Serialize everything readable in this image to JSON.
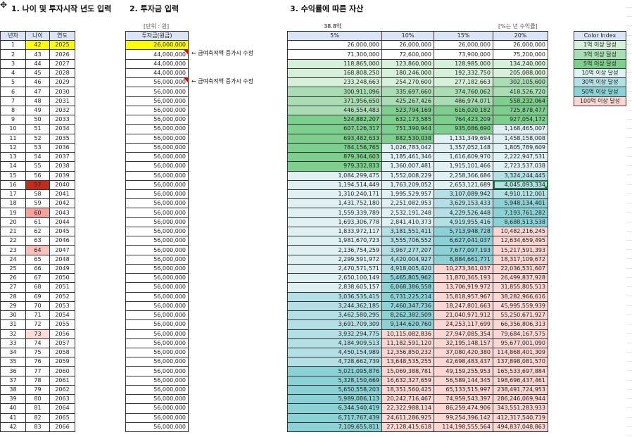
{
  "titles": {
    "section1": "1. 나이 및 투자시작 년도 입력",
    "section2": "2. 투자금 입력",
    "section3": "3. 수익률에 따른 자산"
  },
  "notes": {
    "unit": "[단위 : 원]",
    "highlight_total": "38.8억",
    "rate_note": "[%는 년 수익률]",
    "salary_note": "← 급여축적액 증가시 수정"
  },
  "left_table": {
    "headers": [
      "년차",
      "나이",
      "연도"
    ],
    "start_age": 42,
    "start_year": 2025,
    "row_count": 42,
    "age_highlights": {
      "16": "#c42b1c",
      "19": "#f4a29b",
      "23": "#f8c0ba",
      "32": "#fbdcd8"
    },
    "input_color": "#ffff00"
  },
  "invest_table": {
    "header": "투자금(원금)",
    "values": [
      "26,000,000",
      "44,000,000",
      "44,000,000",
      "44,000,000",
      "56,000,000",
      "56,000,000",
      "56,000,000",
      "56,000,000",
      "56,000,000",
      "56,000,000",
      "56,000,000",
      "56,000,000",
      "56,000,000",
      "56,000,000",
      "56,000,000",
      "56,000,000",
      "56,000,000",
      "56,000,000",
      "56,000,000",
      "56,000,000",
      "56,000,000",
      "56,000,000",
      "56,000,000",
      "56,000,000",
      "56,000,000",
      "56,000,000",
      "56,000,000",
      "56,000,000",
      "56,000,000",
      "56,000,000",
      "56,000,000",
      "56,000,000",
      "56,000,000",
      "56,000,000",
      "56,000,000",
      "56,000,000",
      "56,000,000",
      "56,000,000",
      "56,000,000",
      "56,000,000",
      "56,000,000",
      "56,000,000"
    ],
    "note_rows": [
      2,
      5
    ]
  },
  "returns_table": {
    "headers": [
      "5%",
      "10%",
      "15%",
      "20%"
    ],
    "columns": [
      [
        "26,000,000",
        "71,300,000",
        "118,865,000",
        "168,808,250",
        "233,248,663",
        "300,911,096",
        "371,956,650",
        "446,554,483",
        "524,882,207",
        "607,126,317",
        "693,482,633",
        "784,156,765",
        "879,364,603",
        "979,332,833",
        "1,084,299,475",
        "1,194,514,449",
        "1,310,240,171",
        "1,431,752,180",
        "1,559,339,789",
        "1,693,306,778",
        "1,833,972,117",
        "1,981,670,723",
        "2,136,754,259",
        "2,299,591,972",
        "2,470,571,571",
        "2,650,100,149",
        "2,838,605,157",
        "3,036,535,415",
        "3,244,362,185",
        "3,462,580,295",
        "3,691,709,309",
        "3,932,294,775",
        "4,184,909,513",
        "4,450,154,989",
        "4,728,662,739",
        "5,021,095,876",
        "5,328,150,669",
        "5,650,558,203",
        "5,989,086,113",
        "6,344,540,419",
        "6,717,767,439",
        "7,109,655,811"
      ],
      [
        "26,000,000",
        "72,600,000",
        "123,860,000",
        "180,246,000",
        "254,270,600",
        "335,697,660",
        "425,267,426",
        "523,794,169",
        "632,173,585",
        "751,390,944",
        "882,530,038",
        "1,026,783,042",
        "1,185,461,346",
        "1,360,007,481",
        "1,552,008,229",
        "1,763,209,052",
        "1,995,529,957",
        "2,251,082,953",
        "2,532,191,248",
        "2,841,410,373",
        "3,181,551,411",
        "3,555,706,552",
        "3,967,277,207",
        "4,420,004,927",
        "4,918,005,420",
        "5,465,805,962",
        "6,068,386,558",
        "6,731,225,214",
        "7,460,347,736",
        "8,262,382,509",
        "9,144,620,760",
        "10,115,082,836",
        "11,182,591,120",
        "12,356,850,232",
        "13,648,535,255",
        "15,069,388,781",
        "16,632,327,659",
        "18,351,560,425",
        "20,242,716,467",
        "22,322,988,114",
        "24,611,286,925",
        "27,128,415,618"
      ],
      [
        "26,000,000",
        "73,900,000",
        "128,985,000",
        "192,332,750",
        "277,182,663",
        "374,760,062",
        "486,974,071",
        "616,020,182",
        "764,423,209",
        "935,086,690",
        "1,131,349,694",
        "1,357,052,148",
        "1,616,609,970",
        "1,915,101,466",
        "2,258,366,686",
        "2,653,121,689",
        "3,107,089,942",
        "3,629,153,433",
        "4,229,526,448",
        "4,919,955,416",
        "5,713,948,728",
        "6,627,041,037",
        "7,677,097,193",
        "8,884,661,771",
        "10,273,361,037",
        "11,870,365,193",
        "13,706,919,972",
        "15,818,957,967",
        "18,247,801,663",
        "21,040,971,912",
        "24,253,117,699",
        "27,947,085,354",
        "32,195,148,157",
        "37,080,420,380",
        "42,698,483,437",
        "49,159,255,953",
        "56,589,144,345",
        "65,133,515,997",
        "74,959,543,397",
        "86,259,474,906",
        "99,254,396,142",
        "114,198,555,564"
      ],
      [
        "26,000,000",
        "75,200,000",
        "134,240,000",
        "205,088,000",
        "302,105,600",
        "418,526,720",
        "558,232,064",
        "725,878,477",
        "927,054,172",
        "1,168,465,007",
        "1,458,158,008",
        "1,805,789,609",
        "2,222,947,531",
        "2,723,537,038",
        "3,324,244,445",
        "4,045,093,334",
        "4,910,112,001",
        "5,948,134,401",
        "7,193,761,282",
        "8,688,513,538",
        "10,482,216,245",
        "12,634,659,495",
        "15,217,591,393",
        "18,317,109,672",
        "22,036,531,607",
        "26,499,837,928",
        "31,855,805,513",
        "38,282,966,616",
        "45,995,559,939",
        "55,250,671,927",
        "66,356,806,313",
        "79,684,167,575",
        "95,677,001,090",
        "114,868,401,309",
        "137,898,081,570",
        "165,533,697,884",
        "198,696,437,461",
        "238,491,724,953",
        "286,246,069,944",
        "343,551,283,933",
        "412,317,540,719",
        "494,837,048,863"
      ]
    ]
  },
  "color_index": {
    "header": "Color Index",
    "items": [
      {
        "label": "1억 이상 달성",
        "threshold": 100000000,
        "color": "#d6f0da"
      },
      {
        "label": "3억 이상 달성",
        "threshold": 300000000,
        "color": "#a9ddb3"
      },
      {
        "label": "5억 이상 달성",
        "threshold": 500000000,
        "color": "#7ccf8c"
      },
      {
        "label": "10억 이상 달성",
        "threshold": 1000000000,
        "color": "#dff1f3"
      },
      {
        "label": "30억 이상 달성",
        "threshold": 3000000000,
        "color": "#b2e0e5"
      },
      {
        "label": "50억 이상 달성",
        "threshold": 5000000000,
        "color": "#8bd2d7"
      },
      {
        "label": "100억 이상 달성",
        "threshold": 10000000000,
        "color": "#fbd6d2"
      }
    ]
  }
}
